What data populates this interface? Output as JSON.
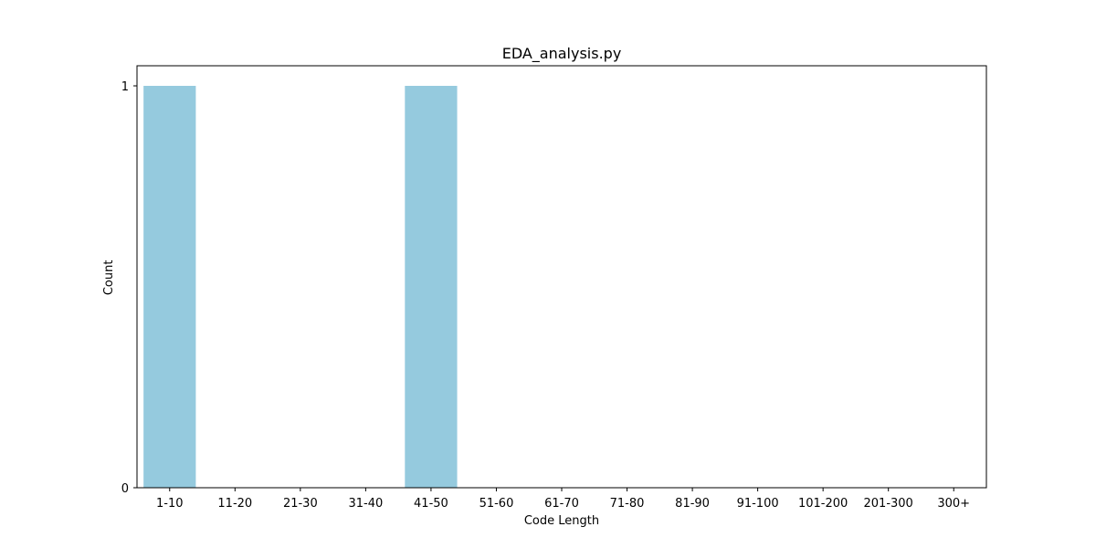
{
  "chart_data": {
    "type": "bar",
    "title": "EDA_analysis.py",
    "xlabel": "Code Length",
    "ylabel": "Count",
    "categories": [
      "1-10",
      "11-20",
      "21-30",
      "31-40",
      "41-50",
      "51-60",
      "61-70",
      "71-80",
      "81-90",
      "91-100",
      "101-200",
      "201-300",
      "300+"
    ],
    "values": [
      1,
      0,
      0,
      0,
      1,
      0,
      0,
      0,
      0,
      0,
      0,
      0,
      0
    ],
    "ylim": [
      0,
      1.05
    ],
    "yticks": [
      "0",
      "1"
    ],
    "grid": false,
    "bar_color": "#95cade"
  }
}
